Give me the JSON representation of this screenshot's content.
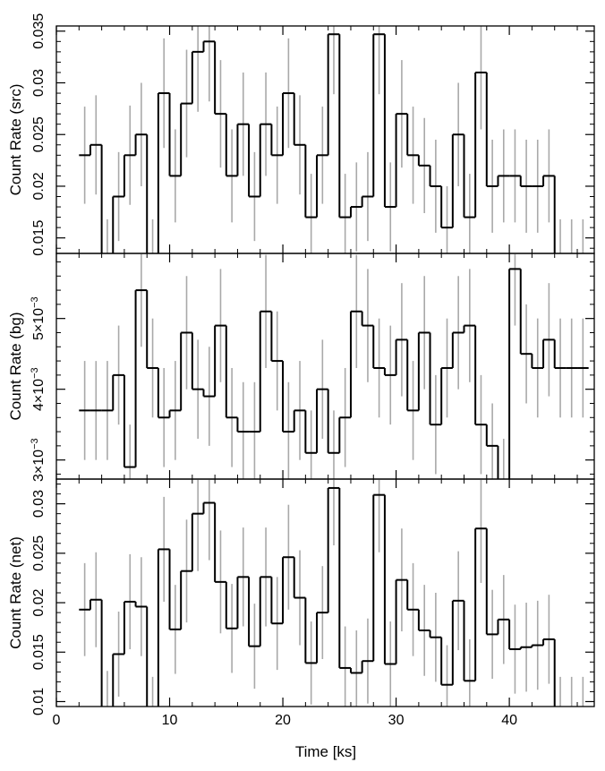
{
  "chart_data": {
    "type": "line",
    "style": "step-histogram-with-errorbars",
    "shared_x": {
      "label": "Time [ks]",
      "range": [
        0,
        47.5
      ],
      "ticks": [
        0,
        10,
        20,
        30,
        40
      ],
      "tick_labels": [
        "0",
        "10",
        "20",
        "30",
        "40"
      ],
      "bin_centers": [
        2.5,
        3.5,
        4.5,
        5.5,
        6.5,
        7.5,
        8.5,
        9.5,
        10.5,
        11.5,
        12.5,
        13.5,
        14.5,
        15.5,
        16.5,
        17.5,
        18.5,
        19.5,
        20.5,
        21.5,
        22.5,
        23.5,
        24.5,
        25.5,
        26.5,
        27.5,
        28.5,
        29.5,
        30.5,
        31.5,
        32.5,
        33.5,
        34.5,
        35.5,
        36.5,
        37.5,
        38.5,
        39.5,
        40.5,
        41.5,
        42.5,
        43.5,
        44.5,
        45.5,
        46.5
      ],
      "bin_width": 1.0
    },
    "panels": [
      {
        "name": "src",
        "ylabel": "Count Rate (src)",
        "ylim": [
          0.0135,
          0.0355
        ],
        "yticks": [
          0.015,
          0.02,
          0.025,
          0.03,
          0.035
        ],
        "ytick_labels": [
          "0.015",
          "0.02",
          "0.025",
          "0.03",
          "0.035"
        ],
        "values": [
          0.023,
          0.024,
          0.013,
          0.019,
          0.023,
          0.025,
          0.013,
          0.029,
          0.021,
          0.028,
          0.033,
          0.034,
          0.027,
          0.021,
          0.026,
          0.019,
          0.026,
          0.023,
          0.029,
          0.024,
          0.017,
          0.023,
          0.0347,
          0.017,
          0.018,
          0.019,
          0.0347,
          0.018,
          0.027,
          0.023,
          0.022,
          0.02,
          0.016,
          0.025,
          0.017,
          0.031,
          0.02,
          0.021,
          0.021,
          0.02,
          0.02,
          0.021,
          0.013,
          0.013,
          0.013
        ],
        "errors": [
          0.0047,
          0.0048,
          0.0038,
          0.0043,
          0.0048,
          0.005,
          0.0038,
          0.0053,
          0.0045,
          0.0052,
          0.0058,
          0.0058,
          0.0052,
          0.0045,
          0.005,
          0.0043,
          0.005,
          0.0047,
          0.0053,
          0.0048,
          0.0042,
          0.0047,
          0.0058,
          0.0042,
          0.0043,
          0.0043,
          0.0058,
          0.0043,
          0.0052,
          0.0047,
          0.0046,
          0.0045,
          0.004,
          0.005,
          0.0042,
          0.0055,
          0.0045,
          0.0045,
          0.0045,
          0.0045,
          0.0045,
          0.0045,
          0.0038,
          0.0038,
          0.0038
        ]
      },
      {
        "name": "bg",
        "ylabel": "Count Rate (bg)",
        "ylim": [
          0.00273,
          0.00592
        ],
        "yticks": [
          0.003,
          0.004,
          0.005
        ],
        "ytick_labels": [
          "3×10⁻³",
          "4×10⁻³",
          "5×10⁻³"
        ],
        "values": [
          0.0037,
          0.0037,
          0.0037,
          0.0042,
          0.0029,
          0.0054,
          0.0043,
          0.0036,
          0.0037,
          0.0048,
          0.004,
          0.0039,
          0.0049,
          0.0036,
          0.0034,
          0.0034,
          0.0051,
          0.0044,
          0.0034,
          0.0037,
          0.0031,
          0.004,
          0.0031,
          0.0036,
          0.0051,
          0.0049,
          0.0043,
          0.0042,
          0.0047,
          0.0037,
          0.0048,
          0.0035,
          0.0043,
          0.0048,
          0.0049,
          0.0035,
          0.0032,
          0.0027,
          0.0057,
          0.0045,
          0.0043,
          0.0047,
          0.0043,
          0.0043,
          0.0043
        ],
        "errors": [
          0.0007,
          0.0007,
          0.0007,
          0.0007,
          0.0006,
          0.0008,
          0.0007,
          0.0007,
          0.0007,
          0.0008,
          0.0007,
          0.0007,
          0.0008,
          0.0007,
          0.0007,
          0.0007,
          0.0008,
          0.0007,
          0.0007,
          0.0007,
          0.0006,
          0.0007,
          0.0006,
          0.0007,
          0.0008,
          0.0008,
          0.0007,
          0.0007,
          0.0008,
          0.0007,
          0.0008,
          0.0007,
          0.0007,
          0.0008,
          0.0008,
          0.0007,
          0.0006,
          0.0006,
          0.0008,
          0.0007,
          0.0007,
          0.0008,
          0.0007,
          0.0007,
          0.0007
        ]
      },
      {
        "name": "net",
        "ylabel": "Count Rate (net)",
        "ylim": [
          0.0095,
          0.0325
        ],
        "yticks": [
          0.01,
          0.015,
          0.02,
          0.025,
          0.03
        ],
        "ytick_labels": [
          "0.01",
          "0.015",
          "0.02",
          "0.025",
          "0.03"
        ],
        "values": [
          0.0193,
          0.0203,
          0.0093,
          0.0148,
          0.0201,
          0.0196,
          0.0087,
          0.0254,
          0.0173,
          0.0232,
          0.029,
          0.0301,
          0.0221,
          0.0174,
          0.0226,
          0.0156,
          0.0226,
          0.0179,
          0.0246,
          0.0205,
          0.0139,
          0.019,
          0.0316,
          0.0134,
          0.0129,
          0.0141,
          0.0309,
          0.0138,
          0.0223,
          0.0193,
          0.0172,
          0.0165,
          0.0117,
          0.0202,
          0.0121,
          0.0275,
          0.0168,
          0.0183,
          0.0153,
          0.0155,
          0.0157,
          0.0163,
          0.0087,
          0.0087,
          0.0087
        ],
        "errors": [
          0.0047,
          0.0048,
          0.0038,
          0.0043,
          0.0048,
          0.005,
          0.0038,
          0.0053,
          0.0045,
          0.0052,
          0.0058,
          0.0058,
          0.0052,
          0.0045,
          0.005,
          0.0043,
          0.005,
          0.0047,
          0.0053,
          0.0048,
          0.0042,
          0.0047,
          0.0058,
          0.0042,
          0.0043,
          0.0043,
          0.0058,
          0.0043,
          0.0052,
          0.0047,
          0.0046,
          0.0045,
          0.004,
          0.005,
          0.0042,
          0.0055,
          0.0045,
          0.0045,
          0.0045,
          0.0045,
          0.0045,
          0.0045,
          0.0038,
          0.0038,
          0.0038
        ]
      }
    ],
    "colors": {
      "step_line": "#000000",
      "error_bars": "#a9a9a9",
      "frame": "#000000"
    }
  }
}
